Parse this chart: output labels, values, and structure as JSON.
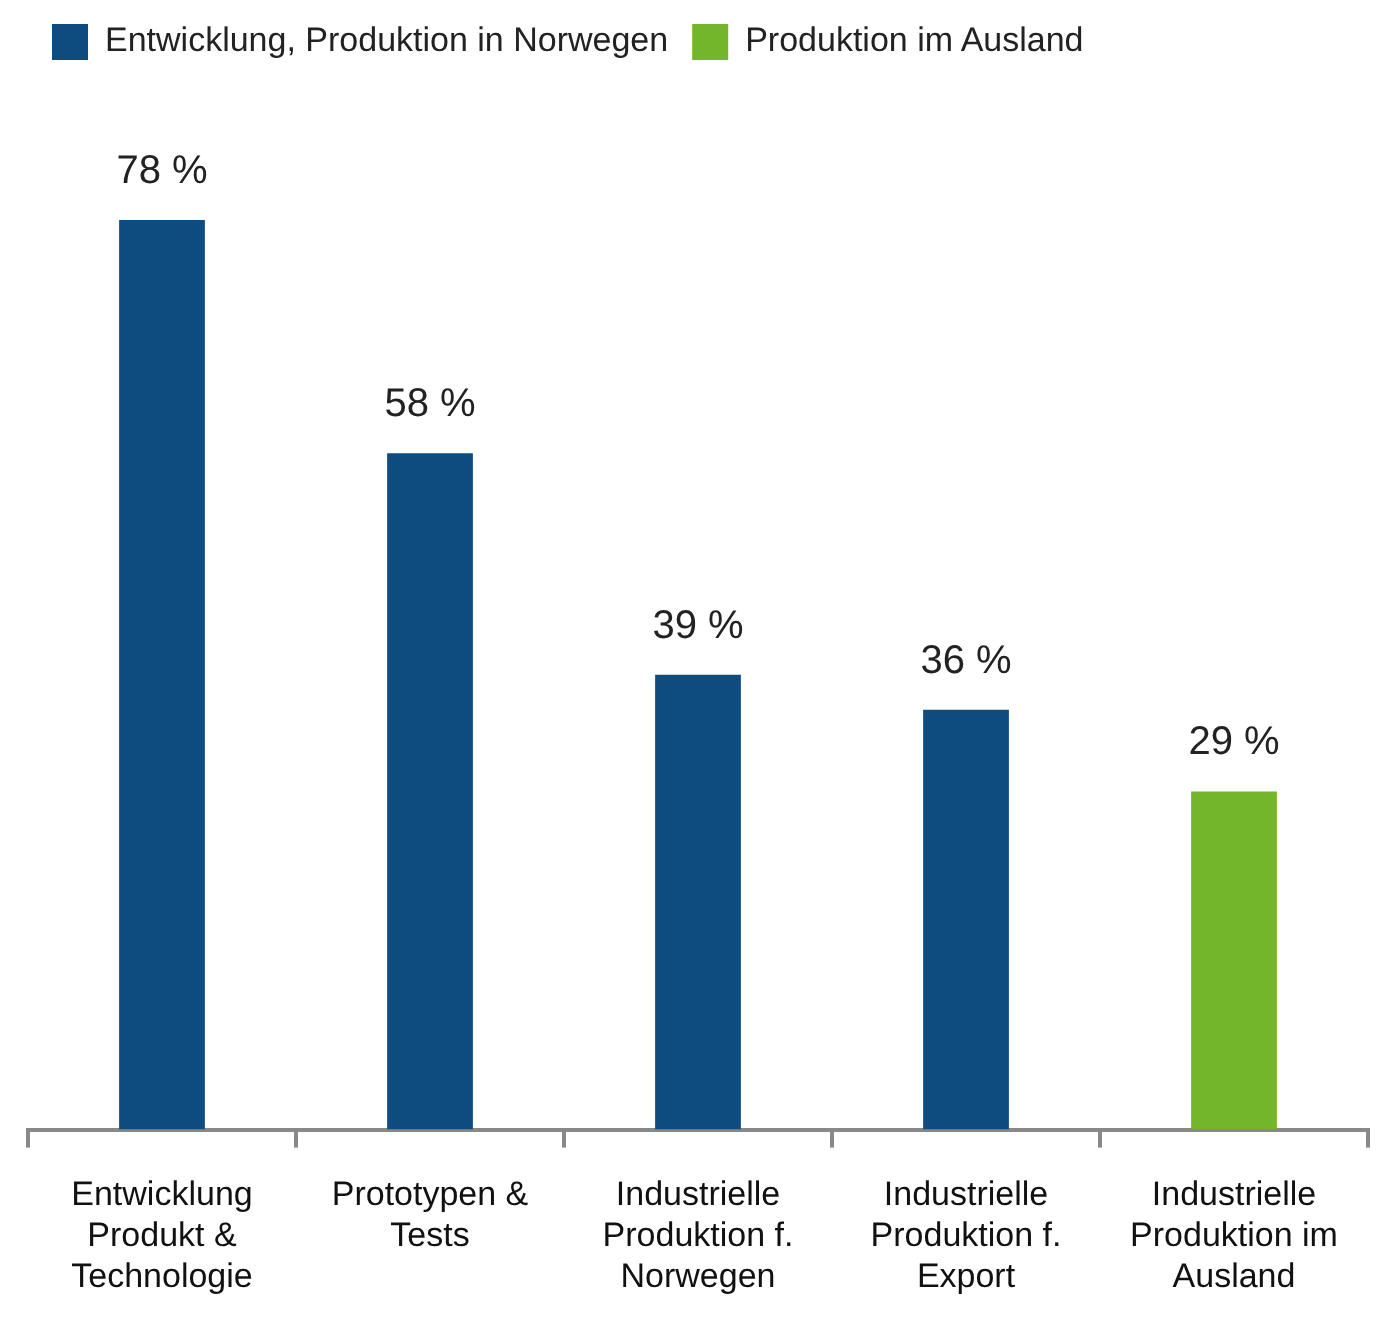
{
  "chart_data": {
    "type": "bar",
    "stacked": true,
    "legend": "top left",
    "grid": false,
    "categories": [
      "Entwicklung Produkt & Technologie",
      "Prototypen & Tests",
      "Industrielle Produktion f. Norwegen",
      "Industrielle Produktion f. Export",
      "Industrielle Produktion im Ausland"
    ],
    "series": [
      {
        "name": "Entwicklung, Produktion in Norwegen",
        "color": "#0e4c7f",
        "values": [
          78,
          58,
          39,
          36,
          null
        ],
        "value_labels": [
          "78 %",
          "58 %",
          "39 %",
          "36 %",
          null
        ]
      },
      {
        "name": "Produktion im Ausland",
        "color": "#72b62c",
        "values": [
          null,
          null,
          null,
          null,
          29
        ],
        "value_labels": [
          null,
          null,
          null,
          null,
          "29 %"
        ]
      }
    ]
  }
}
